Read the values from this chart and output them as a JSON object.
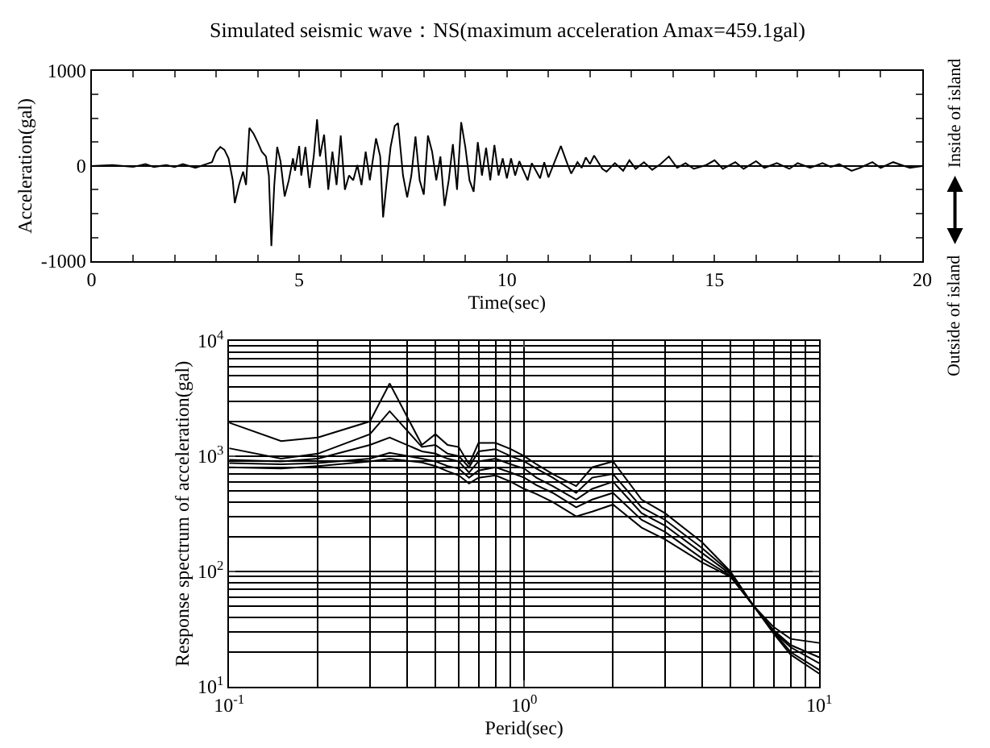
{
  "chart_data": [
    {
      "type": "line",
      "title": "Simulated seismic wave：NS(maximum acceleration Amax=459.1gal)",
      "xlabel": "Time(sec)",
      "ylabel": "Acceleration(gal)",
      "annotations": [
        "Inside of island",
        "Outside of island"
      ],
      "xlim": [
        0,
        20
      ],
      "ylim": [
        -1000,
        1000
      ],
      "xticks": [
        0,
        {
          "value": 1,
          "label": null
        },
        {
          "value": 2,
          "label": null
        },
        {
          "value": 3,
          "label": null
        },
        {
          "value": 4,
          "label": null
        },
        5,
        {
          "value": 6,
          "label": null
        },
        {
          "value": 7,
          "label": null
        },
        {
          "value": 8,
          "label": null
        },
        {
          "value": 9,
          "label": null
        },
        10,
        {
          "value": 11,
          "label": null
        },
        {
          "value": 12,
          "label": null
        },
        {
          "value": 13,
          "label": null
        },
        {
          "value": 14,
          "label": null
        },
        15,
        {
          "value": 16,
          "label": null
        },
        {
          "value": 17,
          "label": null
        },
        {
          "value": 18,
          "label": null
        },
        {
          "value": 19,
          "label": null
        },
        20
      ],
      "yticks": [
        -1000,
        {
          "value": -750,
          "label": null
        },
        {
          "value": -500,
          "label": null
        },
        {
          "value": -250,
          "label": null
        },
        0,
        {
          "value": 250,
          "label": null
        },
        {
          "value": 500,
          "label": null
        },
        {
          "value": 750,
          "label": null
        },
        1000
      ],
      "ref_lines": [
        {
          "axis": "y",
          "value": 0,
          "color": "#000000"
        }
      ],
      "grid": false,
      "marker": "none",
      "line_style": "solid",
      "x": [
        0,
        0.5,
        1.0,
        1.3,
        1.5,
        1.8,
        2.0,
        2.2,
        2.5,
        2.7,
        2.9,
        3.0,
        3.1,
        3.2,
        3.3,
        3.4,
        3.45,
        3.55,
        3.65,
        3.72,
        3.8,
        3.9,
        4.0,
        4.1,
        4.2,
        4.27,
        4.33,
        4.4,
        4.47,
        4.55,
        4.65,
        4.75,
        4.85,
        4.9,
        5.0,
        5.05,
        5.15,
        5.25,
        5.35,
        5.43,
        5.5,
        5.6,
        5.7,
        5.8,
        5.9,
        6.0,
        6.1,
        6.2,
        6.3,
        6.4,
        6.5,
        6.6,
        6.7,
        6.85,
        6.95,
        7.02,
        7.1,
        7.2,
        7.3,
        7.38,
        7.5,
        7.6,
        7.7,
        7.8,
        7.9,
        8.0,
        8.1,
        8.2,
        8.3,
        8.4,
        8.5,
        8.6,
        8.7,
        8.8,
        8.9,
        9.0,
        9.1,
        9.2,
        9.3,
        9.4,
        9.5,
        9.6,
        9.7,
        9.8,
        9.9,
        10.0,
        10.1,
        10.2,
        10.3,
        10.5,
        10.6,
        10.8,
        10.9,
        11.0,
        11.2,
        11.3,
        11.45,
        11.55,
        11.7,
        11.8,
        11.9,
        12.0,
        12.1,
        12.3,
        12.4,
        12.6,
        12.8,
        12.95,
        13.1,
        13.3,
        13.5,
        13.7,
        13.9,
        14.1,
        14.3,
        14.5,
        14.8,
        15.0,
        15.2,
        15.5,
        15.7,
        16.0,
        16.2,
        16.5,
        16.8,
        17.0,
        17.3,
        17.6,
        17.8,
        18.0,
        18.3,
        18.5,
        18.8,
        19.0,
        19.3,
        19.5,
        19.7,
        20
      ],
      "series": [
        {
          "color": "#000000",
          "values": [
            0,
            10,
            -10,
            20,
            -10,
            10,
            -10,
            20,
            -20,
            10,
            40,
            150,
            200,
            170,
            80,
            -150,
            -390,
            -200,
            -60,
            -200,
            400,
            340,
            250,
            150,
            100,
            -100,
            -840,
            -200,
            200,
            50,
            -320,
            -150,
            80,
            -50,
            210,
            -100,
            200,
            -230,
            100,
            490,
            100,
            330,
            -250,
            150,
            -200,
            320,
            -250,
            -100,
            -150,
            10,
            -200,
            150,
            -150,
            290,
            100,
            -540,
            -200,
            200,
            420,
            450,
            -100,
            -330,
            -100,
            310,
            -150,
            -300,
            320,
            150,
            -150,
            100,
            -420,
            -150,
            230,
            -250,
            460,
            200,
            -150,
            -270,
            250,
            -100,
            190,
            -150,
            220,
            -100,
            80,
            -130,
            80,
            -100,
            50,
            -150,
            30,
            -130,
            40,
            -120,
            100,
            210,
            30,
            -80,
            40,
            -20,
            90,
            20,
            110,
            -30,
            -60,
            30,
            -50,
            60,
            -30,
            40,
            -40,
            20,
            100,
            -20,
            30,
            -30,
            10,
            60,
            -30,
            40,
            -30,
            50,
            -20,
            30,
            -30,
            30,
            -20,
            30,
            -10,
            20,
            -50,
            -20,
            40,
            -20,
            40,
            10,
            -20,
            0
          ]
        }
      ]
    },
    {
      "type": "line",
      "xlabel": "Perid(sec)",
      "ylabel": "Response spectrum of acceleration(gal)",
      "log": "xy",
      "grid": true,
      "marker": "none",
      "line_style": "solid",
      "xlim": [
        0.1,
        10
      ],
      "ylim": [
        10,
        10000
      ],
      "xticks": [
        {
          "value": 0.1,
          "label": "10$^{-1}$"
        },
        {
          "value": 1,
          "label": "10$^{0}$"
        },
        {
          "value": 10,
          "label": "10$^{1}$"
        }
      ],
      "yticks": [
        {
          "value": 10,
          "label": "10$^{1}$"
        },
        {
          "value": 100,
          "label": "10$^{2}$"
        },
        {
          "value": 1000,
          "label": "10$^{3}$"
        },
        {
          "value": 10000,
          "label": "10$^{4}$"
        }
      ],
      "x": [
        0.1,
        0.15,
        0.2,
        0.3,
        0.35,
        0.45,
        0.5,
        0.55,
        0.6,
        0.65,
        0.7,
        0.8,
        0.9,
        1.0,
        1.1,
        1.25,
        1.5,
        1.7,
        2.0,
        2.5,
        3,
        4,
        5,
        6,
        7,
        8,
        10
      ],
      "series": [
        {
          "color": "#000000",
          "values": [
            1950,
            1350,
            1450,
            2000,
            4270,
            1250,
            1550,
            1250,
            1200,
            850,
            1300,
            1300,
            1150,
            1000,
            850,
            700,
            550,
            800,
            900,
            420,
            320,
            180,
            100,
            50,
            33,
            26,
            24
          ]
        },
        {
          "color": "#000000",
          "values": [
            1170,
            950,
            1050,
            1550,
            2450,
            1200,
            1250,
            1050,
            1000,
            800,
            1100,
            1150,
            1000,
            900,
            780,
            650,
            480,
            650,
            700,
            360,
            280,
            160,
            98,
            50,
            31,
            23,
            18
          ]
        },
        {
          "color": "#000000",
          "values": [
            930,
            900,
            950,
            1250,
            1450,
            1100,
            1050,
            950,
            900,
            720,
            900,
            950,
            850,
            780,
            650,
            550,
            420,
            520,
            600,
            320,
            250,
            145,
            95,
            50,
            30,
            22,
            16
          ]
        },
        {
          "color": "#000000",
          "values": [
            870,
            850,
            870,
            950,
            1070,
            950,
            900,
            820,
            780,
            650,
            750,
            800,
            720,
            650,
            560,
            480,
            360,
            420,
            480,
            280,
            220,
            130,
            92,
            50,
            30,
            20,
            14
          ]
        },
        {
          "color": "#000000",
          "values": [
            800,
            780,
            820,
            900,
            950,
            880,
            820,
            740,
            680,
            580,
            650,
            680,
            600,
            520,
            470,
            400,
            300,
            330,
            380,
            240,
            190,
            120,
            90,
            50,
            29,
            19,
            13
          ]
        }
      ]
    }
  ]
}
